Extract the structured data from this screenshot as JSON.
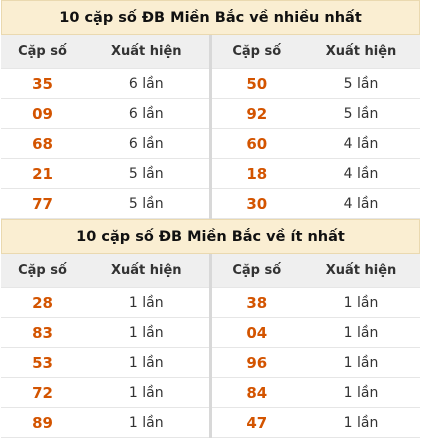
{
  "most": {
    "title": "10 cặp số ĐB Miền Bắc về nhiều nhất",
    "headers": {
      "pair": "Cặp số",
      "freq": "Xuất hiện"
    },
    "rows": [
      {
        "a": "35",
        "af": "6 lần",
        "b": "50",
        "bf": "5 lần"
      },
      {
        "a": "09",
        "af": "6 lần",
        "b": "92",
        "bf": "5 lần"
      },
      {
        "a": "68",
        "af": "6 lần",
        "b": "60",
        "bf": "4 lần"
      },
      {
        "a": "21",
        "af": "5 lần",
        "b": "18",
        "bf": "4 lần"
      },
      {
        "a": "77",
        "af": "5 lần",
        "b": "30",
        "bf": "4 lần"
      }
    ]
  },
  "least": {
    "title": "10 cặp số ĐB Miền Bắc về ít nhất",
    "headers": {
      "pair": "Cặp số",
      "freq": "Xuất hiện"
    },
    "rows": [
      {
        "a": "28",
        "af": "1 lần",
        "b": "38",
        "bf": "1 lần"
      },
      {
        "a": "83",
        "af": "1 lần",
        "b": "04",
        "bf": "1 lần"
      },
      {
        "a": "53",
        "af": "1 lần",
        "b": "96",
        "bf": "1 lần"
      },
      {
        "a": "72",
        "af": "1 lần",
        "b": "84",
        "bf": "1 lần"
      },
      {
        "a": "89",
        "af": "1 lần",
        "b": "47",
        "bf": "1 lần"
      }
    ]
  }
}
